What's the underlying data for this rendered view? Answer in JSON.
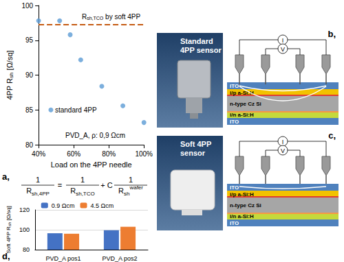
{
  "chart_data": [
    {
      "type": "scatter",
      "panel_label": "a,",
      "xlabel": "Load on the 4PP needle",
      "ylabel": {
        "text": "4PP R",
        "sub": "sh",
        "after": " [Ω/sq]"
      },
      "x": [
        40,
        47,
        52,
        58,
        64,
        76,
        88,
        100
      ],
      "values": [
        97.8,
        85,
        97.8,
        95.8,
        92.2,
        88.4,
        85.6,
        83.2
      ],
      "color": "#5b9bd5",
      "marker": "circle",
      "xlim": [
        40,
        100
      ],
      "xticks": [
        {
          "value": 40,
          "label": "40%"
        },
        {
          "value": 60,
          "label": "60%"
        },
        {
          "value": 80,
          "label": "80%"
        },
        {
          "value": 100,
          "label": "100%"
        }
      ],
      "ylim": [
        80,
        100
      ],
      "yticks": [
        80,
        85,
        90,
        95,
        100
      ],
      "grid": false,
      "reference_line": {
        "value": 97.3,
        "label": {
          "text": "R",
          "sub": "sh,TCO",
          "after": " by soft 4PP"
        },
        "color": "#c55a11",
        "line_style": "dashed"
      },
      "annotations": [
        {
          "text": "standard 4PP",
          "x": 47,
          "y": 85
        }
      ],
      "note": "PVD_A, ρ: 0,9 Ωcm"
    },
    {
      "type": "bar",
      "panel_label": "d,",
      "ylabel": {
        "text": "Soft 4PP R",
        "sub": "sh",
        "after": " [Ω/sq]"
      },
      "categories": [
        "PVD_A pos1",
        "PVD_A pos2"
      ],
      "series": [
        {
          "name": "0.9 Ωcm",
          "color": "#4472c4",
          "values": [
            96.5,
            99.5
          ]
        },
        {
          "name": "4.5 Ωcm",
          "color": "#ed7d31",
          "values": [
            96,
            103
          ]
        }
      ],
      "ylim": [
        80,
        120
      ],
      "yticks": [
        80,
        100,
        120
      ],
      "grid": true,
      "legend": "top"
    }
  ],
  "equation": {
    "fractions": [
      {
        "num": "1",
        "den": "R",
        "sub": "sh,4PP"
      },
      {
        "num": "1",
        "den": "R",
        "sub": "sh,TCO"
      },
      {
        "num": "1",
        "den": "R",
        "sub": "sh",
        "sup": "wafer"
      }
    ],
    "operators": [
      "=",
      "+ C"
    ]
  },
  "photos": [
    {
      "lines": [
        "Standard",
        "4PP sensor"
      ]
    },
    {
      "lines": [
        "Soft 4PP",
        "sensor"
      ]
    }
  ],
  "diagrams": [
    {
      "panel_label": "b,",
      "current": "I",
      "voltage": "V",
      "layers": [
        "ITO",
        "i/p a-Si:H",
        "n-type Cz Si",
        "i/n a-Si:H",
        "ITO"
      ]
    },
    {
      "panel_label": "c,",
      "current": "I",
      "voltage": "V",
      "layers": [
        "ITO",
        "i/p a-Si:H",
        "n-type Cz Si",
        "i/n a-Si:H",
        "ITO"
      ]
    }
  ]
}
